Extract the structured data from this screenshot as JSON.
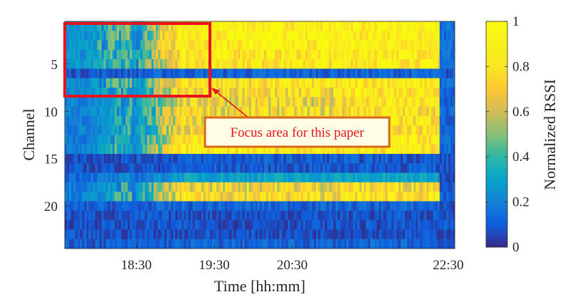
{
  "chart_data": {
    "type": "heatmap",
    "xlabel": "Time [hh:mm]",
    "ylabel": "Channel",
    "colorbar_label": "Normalized RSSI",
    "colormap": "parula",
    "x_range": [
      "17:35",
      "22:35"
    ],
    "x_ticks": [
      "18:30",
      "19:30",
      "20:30",
      "22:30"
    ],
    "y_range": [
      1,
      24
    ],
    "y_ticks": [
      5,
      10,
      15,
      20
    ],
    "colorbar_range": [
      0,
      1
    ],
    "colorbar_ticks": [
      0,
      0.2,
      0.4,
      0.6,
      0.8,
      1
    ],
    "colorbar_tick_labels": [
      "0",
      "0.2",
      "0.4",
      "0.6",
      "0.8",
      "1"
    ],
    "channels": 24,
    "channel_rssi_levels": [
      {
        "channel": 1,
        "early": 0.25,
        "mid": 0.9,
        "late": 0.9
      },
      {
        "channel": 2,
        "early": 0.25,
        "mid": 0.9,
        "late": 0.9
      },
      {
        "channel": 3,
        "early": 0.25,
        "mid": 0.88,
        "late": 0.9
      },
      {
        "channel": 4,
        "early": 0.25,
        "mid": 0.85,
        "late": 0.88
      },
      {
        "channel": 5,
        "early": 0.25,
        "mid": 0.85,
        "late": 0.88
      },
      {
        "channel": 6,
        "early": 0.1,
        "mid": 0.12,
        "late": 0.12
      },
      {
        "channel": 7,
        "early": 0.25,
        "mid": 0.8,
        "late": 0.85
      },
      {
        "channel": 8,
        "early": 0.22,
        "mid": 0.75,
        "late": 0.85
      },
      {
        "channel": 9,
        "early": 0.2,
        "mid": 0.7,
        "late": 0.8
      },
      {
        "channel": 10,
        "early": 0.2,
        "mid": 0.72,
        "late": 0.8
      },
      {
        "channel": 11,
        "early": 0.2,
        "mid": 0.72,
        "late": 0.8
      },
      {
        "channel": 12,
        "early": 0.2,
        "mid": 0.75,
        "late": 0.8
      },
      {
        "channel": 13,
        "early": 0.2,
        "mid": 0.8,
        "late": 0.85
      },
      {
        "channel": 14,
        "early": 0.2,
        "mid": 0.85,
        "late": 0.85
      },
      {
        "channel": 15,
        "early": 0.08,
        "mid": 0.1,
        "late": 0.1
      },
      {
        "channel": 16,
        "early": 0.08,
        "mid": 0.1,
        "late": 0.1
      },
      {
        "channel": 17,
        "early": 0.15,
        "mid": 0.3,
        "late": 0.3
      },
      {
        "channel": 18,
        "early": 0.2,
        "mid": 0.7,
        "late": 0.75
      },
      {
        "channel": 19,
        "early": 0.2,
        "mid": 0.75,
        "late": 0.8
      },
      {
        "channel": 20,
        "early": 0.1,
        "mid": 0.12,
        "late": 0.12
      },
      {
        "channel": 21,
        "early": 0.08,
        "mid": 0.08,
        "late": 0.08
      },
      {
        "channel": 22,
        "early": 0.08,
        "mid": 0.08,
        "late": 0.08
      },
      {
        "channel": 23,
        "early": 0.08,
        "mid": 0.08,
        "late": 0.08
      },
      {
        "channel": 24,
        "early": 0.1,
        "mid": 0.12,
        "late": 0.12
      }
    ],
    "annotation": {
      "text": "Focus area for this paper",
      "box_color": "#e8131d",
      "label_border_color": "#d66a1a",
      "label_fill_color": "#fffde6",
      "region_time_range": [
        "17:35",
        "18:50"
      ],
      "region_channel_range": [
        1,
        8
      ]
    },
    "grid": false,
    "legend": "none"
  }
}
